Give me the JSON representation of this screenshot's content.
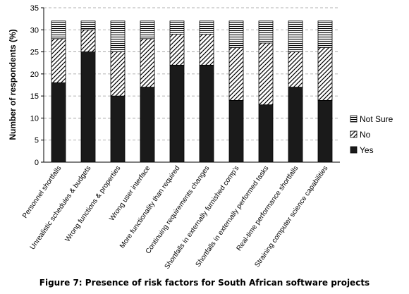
{
  "chart_data": {
    "type": "bar",
    "stacked": true,
    "caption": "Figure 7: Presence of risk factors for South African software projects",
    "ylabel": "Number of respondents (%)",
    "xlabel": "",
    "ylim": [
      0,
      35
    ],
    "yticks": [
      0,
      5,
      10,
      15,
      20,
      25,
      30,
      35
    ],
    "grid": true,
    "legend_position": "right",
    "categories": [
      "Personnel shortfalls",
      "Unrealistic schedules & budgets",
      "Wrong functions & properties",
      "Wrong user interface",
      "More functionality than required",
      "Continuing requirements changes",
      "Shortfalls in externally furnished comp's",
      "Shortfalls in externally performed tasks",
      "Real-time performance shortfalls",
      "Straining computer science capabilities"
    ],
    "series": [
      {
        "name": "Yes",
        "pattern": "solid",
        "values": [
          18,
          25,
          15,
          17,
          22,
          22,
          14,
          13,
          17,
          14
        ]
      },
      {
        "name": "No",
        "pattern": "diagonal",
        "values": [
          10,
          5,
          10,
          11,
          7,
          7,
          12,
          14,
          8,
          12
        ]
      },
      {
        "name": "Not Sure",
        "pattern": "horizontal",
        "values": [
          4,
          2,
          7,
          4,
          3,
          3,
          6,
          5,
          7,
          6
        ]
      }
    ],
    "colors": {
      "bar_fill": "#1a1a1a",
      "bar_stroke": "#000000",
      "hatch": "#000000",
      "grid": "#999999"
    }
  }
}
